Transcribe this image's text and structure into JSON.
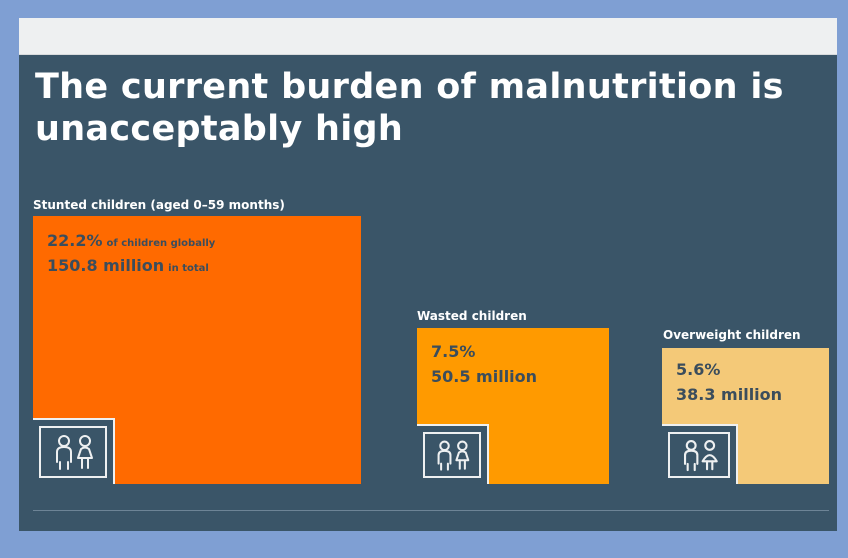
{
  "title": "The current burden of malnutrition is unacceptably high",
  "chart_data": {
    "type": "proportional-area",
    "categories": [
      "Stunted children (aged 0–59 months)",
      "Wasted children",
      "Overweight children"
    ],
    "series": [
      {
        "values": [
          22.2,
          7.5,
          5.6
        ],
        "unit": "%"
      },
      {
        "values": [
          150.8,
          50.5,
          38.3
        ],
        "unit": "million"
      }
    ],
    "items": [
      {
        "label": "Stunted children (aged 0–59 months)",
        "percent": 22.2,
        "percent_text": "22.2%",
        "percent_suffix": "of children globally",
        "millions": 150.8,
        "millions_text": "150.8 million",
        "millions_suffix": "in total",
        "color": "#ff6a00"
      },
      {
        "label": "Wasted children",
        "percent": 7.5,
        "percent_text": "7.5%",
        "percent_suffix": "",
        "millions": 50.5,
        "millions_text": "50.5 million",
        "millions_suffix": "",
        "color": "#ff9a00"
      },
      {
        "label": "Overweight children",
        "percent": 5.6,
        "percent_text": "5.6%",
        "percent_suffix": "",
        "millions": 38.3,
        "millions_text": "38.3 million",
        "millions_suffix": "",
        "color": "#f4c978"
      }
    ],
    "icon": "two-children-icon"
  }
}
